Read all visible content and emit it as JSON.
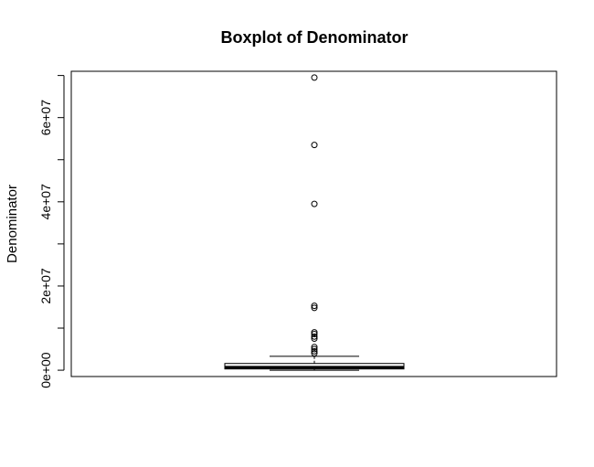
{
  "chart_data": {
    "type": "boxplot",
    "title": "Boxplot of Denominator",
    "xlabel": "",
    "ylabel": "Denominator",
    "ylim": [
      -1500000,
      71000000
    ],
    "yticks": [
      {
        "value": 0,
        "label": "0e+00"
      },
      {
        "value": 20000000,
        "label": "2e+07"
      },
      {
        "value": 40000000,
        "label": "4e+07"
      },
      {
        "value": 60000000,
        "label": "6e+07"
      }
    ],
    "yticks_minor": [
      10000000,
      30000000,
      50000000,
      70000000
    ],
    "box": {
      "whisker_low": 0,
      "q1": 300000,
      "median": 700000,
      "q3": 1600000,
      "whisker_high": 3300000
    },
    "outliers": [
      69500000,
      53500000,
      39500000,
      15300000,
      14800000,
      9000000,
      8600000,
      8000000,
      7500000,
      5500000,
      5000000,
      4500000,
      4000000
    ],
    "grid": false,
    "legend": "none"
  }
}
